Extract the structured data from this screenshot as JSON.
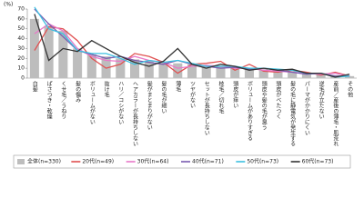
{
  "chart_data": {
    "type": "bar_line",
    "y_label": "(%)",
    "categories": [
      "白髪",
      "ぱさつき・乾燥",
      "くせ毛／うねり",
      "髪の傷み",
      "ボリュームがない",
      "抜け毛",
      "ハリ／コシがない",
      "ヘアカラーが長持ちしない",
      "髪がまとまりがない",
      "髪の毛が細い",
      "薄毛",
      "ツヤがない",
      "セットが長持ちしない",
      "枝毛／切れ毛",
      "頭皮が痒い",
      "ボリュームがありすぎる",
      "頭皮や髪の毛が臭う",
      "頭皮がべたつく",
      "髪の毛に静電気が発生する",
      "パーマがかかりにくい",
      "逆毛が立たない",
      "産前／産後の薄毛・肌荒れ",
      "その他"
    ],
    "series": [
      {
        "name": "全体(n=330)",
        "kind": "bar",
        "color": "#bdbdbd",
        "values": [
          60,
          53,
          48,
          30,
          24,
          22,
          20,
          19,
          18,
          16,
          15,
          14,
          13,
          12,
          11,
          10,
          9,
          8,
          7,
          5,
          4,
          3,
          2
        ]
      },
      {
        "name": "20代(n=49)",
        "kind": "line",
        "color": "#e05050",
        "values": [
          28,
          52,
          50,
          38,
          20,
          10,
          14,
          25,
          22,
          16,
          5,
          14,
          15,
          17,
          8,
          14,
          7,
          6,
          8,
          6,
          3,
          6,
          2
        ]
      },
      {
        "name": "30代(n=64)",
        "kind": "line",
        "color": "#e878c8",
        "values": [
          45,
          55,
          48,
          30,
          22,
          18,
          17,
          22,
          18,
          16,
          10,
          12,
          13,
          12,
          10,
          10,
          8,
          7,
          6,
          5,
          4,
          5,
          2
        ]
      },
      {
        "name": "40代(n=71)",
        "kind": "line",
        "color": "#7a5cb0",
        "values": [
          70,
          55,
          42,
          28,
          24,
          20,
          22,
          18,
          16,
          14,
          18,
          14,
          12,
          10,
          11,
          9,
          10,
          8,
          6,
          4,
          5,
          2,
          2
        ]
      },
      {
        "name": "50代(n=73)",
        "kind": "line",
        "color": "#3cc0e0",
        "values": [
          72,
          50,
          45,
          28,
          25,
          25,
          20,
          14,
          18,
          16,
          18,
          15,
          12,
          12,
          12,
          10,
          10,
          9,
          8,
          5,
          5,
          1,
          2
        ]
      },
      {
        "name": "60代(n=73)",
        "kind": "line",
        "color": "#333333",
        "values": [
          65,
          18,
          30,
          27,
          38,
          30,
          22,
          16,
          12,
          17,
          30,
          14,
          10,
          14,
          12,
          8,
          10,
          8,
          9,
          5,
          5,
          1,
          4
        ]
      }
    ],
    "ylim": [
      0,
      70
    ],
    "yticks": [
      0,
      10,
      20,
      30,
      40,
      50,
      60,
      70
    ],
    "grid": false
  }
}
